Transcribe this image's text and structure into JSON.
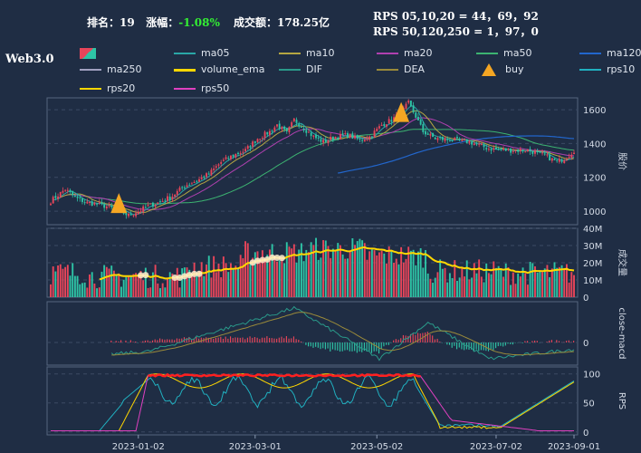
{
  "header": {
    "rank_label": "排名：",
    "rank_value": "19",
    "change_label": "涨幅：",
    "change_value": "-1.08%",
    "change_color": "#33ee33",
    "turnover_label": "成交额：",
    "turnover_value": "178.25亿",
    "rps_short": "RPS 05,10,20 = 44，69，92",
    "rps_long": "RPS 50,120,250 = 1，97，0"
  },
  "symbol": "Web3.0",
  "legend": [
    {
      "label": "",
      "color": "#e8455a",
      "kind": "candle"
    },
    {
      "label": "ma05",
      "color": "#2aa7a7",
      "kind": "line"
    },
    {
      "label": "ma10",
      "color": "#b5a642",
      "kind": "line"
    },
    {
      "label": "ma20",
      "color": "#b040b0",
      "kind": "line"
    },
    {
      "label": "ma50",
      "color": "#3cb371",
      "kind": "line"
    },
    {
      "label": "ma120",
      "color": "#2266cc",
      "kind": "line"
    },
    {
      "label": "ma250",
      "color": "#a0a0c0",
      "kind": "line"
    },
    {
      "label": "volume_ema",
      "color": "#ffd700",
      "kind": "line"
    },
    {
      "label": "DIF",
      "color": "#2a9a8a",
      "kind": "line"
    },
    {
      "label": "DEA",
      "color": "#9a8a3a",
      "kind": "line"
    },
    {
      "label": "buy",
      "color": "#f5a623",
      "kind": "triangle"
    },
    {
      "label": "rps10",
      "color": "#20b0c0",
      "kind": "line"
    },
    {
      "label": "rps20",
      "color": "#ffd700",
      "kind": "line"
    },
    {
      "label": "rps50",
      "color": "#e040c0",
      "kind": "line"
    }
  ],
  "colors": {
    "up": "#e8455a",
    "down": "#2ec4a6",
    "grid": "#3b4a63",
    "bg": "#1f2d44"
  },
  "chart_data": [
    {
      "type": "candlestick",
      "ylabel": "股价",
      "yticks": [
        1000,
        1200,
        1400,
        1600
      ],
      "ylim": [
        920,
        1670
      ],
      "xticks": [
        "2023-01-02",
        "2023-03-01",
        "2023-05-02",
        "2023-07-02",
        "2023-09-01"
      ],
      "keypoints": [
        [
          0,
          1060
        ],
        [
          6,
          1130
        ],
        [
          10,
          1080
        ],
        [
          15,
          1050
        ],
        [
          20,
          1040
        ],
        [
          27,
          1010
        ],
        [
          32,
          975
        ],
        [
          36,
          1000
        ],
        [
          40,
          1030
        ],
        [
          45,
          1055
        ],
        [
          50,
          1090
        ],
        [
          55,
          1150
        ],
        [
          60,
          1180
        ],
        [
          65,
          1220
        ],
        [
          70,
          1290
        ],
        [
          75,
          1330
        ],
        [
          80,
          1360
        ],
        [
          85,
          1430
        ],
        [
          90,
          1470
        ],
        [
          93,
          1510
        ],
        [
          97,
          1460
        ],
        [
          100,
          1540
        ],
        [
          104,
          1490
        ],
        [
          108,
          1440
        ],
        [
          112,
          1410
        ],
        [
          117,
          1440
        ],
        [
          122,
          1450
        ],
        [
          127,
          1420
        ],
        [
          131,
          1440
        ],
        [
          136,
          1510
        ],
        [
          140,
          1540
        ],
        [
          144,
          1580
        ],
        [
          147,
          1640
        ],
        [
          150,
          1560
        ],
        [
          153,
          1470
        ],
        [
          158,
          1430
        ],
        [
          165,
          1420
        ],
        [
          172,
          1410
        ],
        [
          180,
          1370
        ],
        [
          188,
          1360
        ],
        [
          196,
          1360
        ],
        [
          203,
          1330
        ],
        [
          208,
          1290
        ],
        [
          212,
          1320
        ],
        [
          215,
          1360
        ]
      ],
      "buy_markers": [
        28,
        144
      ],
      "ma120_start": 118
    },
    {
      "type": "bar",
      "ylabel": "成交量",
      "yticks": [
        "0",
        "10M",
        "20M",
        "30M",
        "40M"
      ],
      "ylim": [
        0,
        40
      ]
    },
    {
      "type": "bar",
      "ylabel": "close-macd",
      "yticks": [
        "0"
      ]
    },
    {
      "type": "line",
      "ylabel": "RPS",
      "yticks": [
        0,
        50,
        100
      ],
      "ylim": [
        -5,
        112
      ]
    }
  ]
}
